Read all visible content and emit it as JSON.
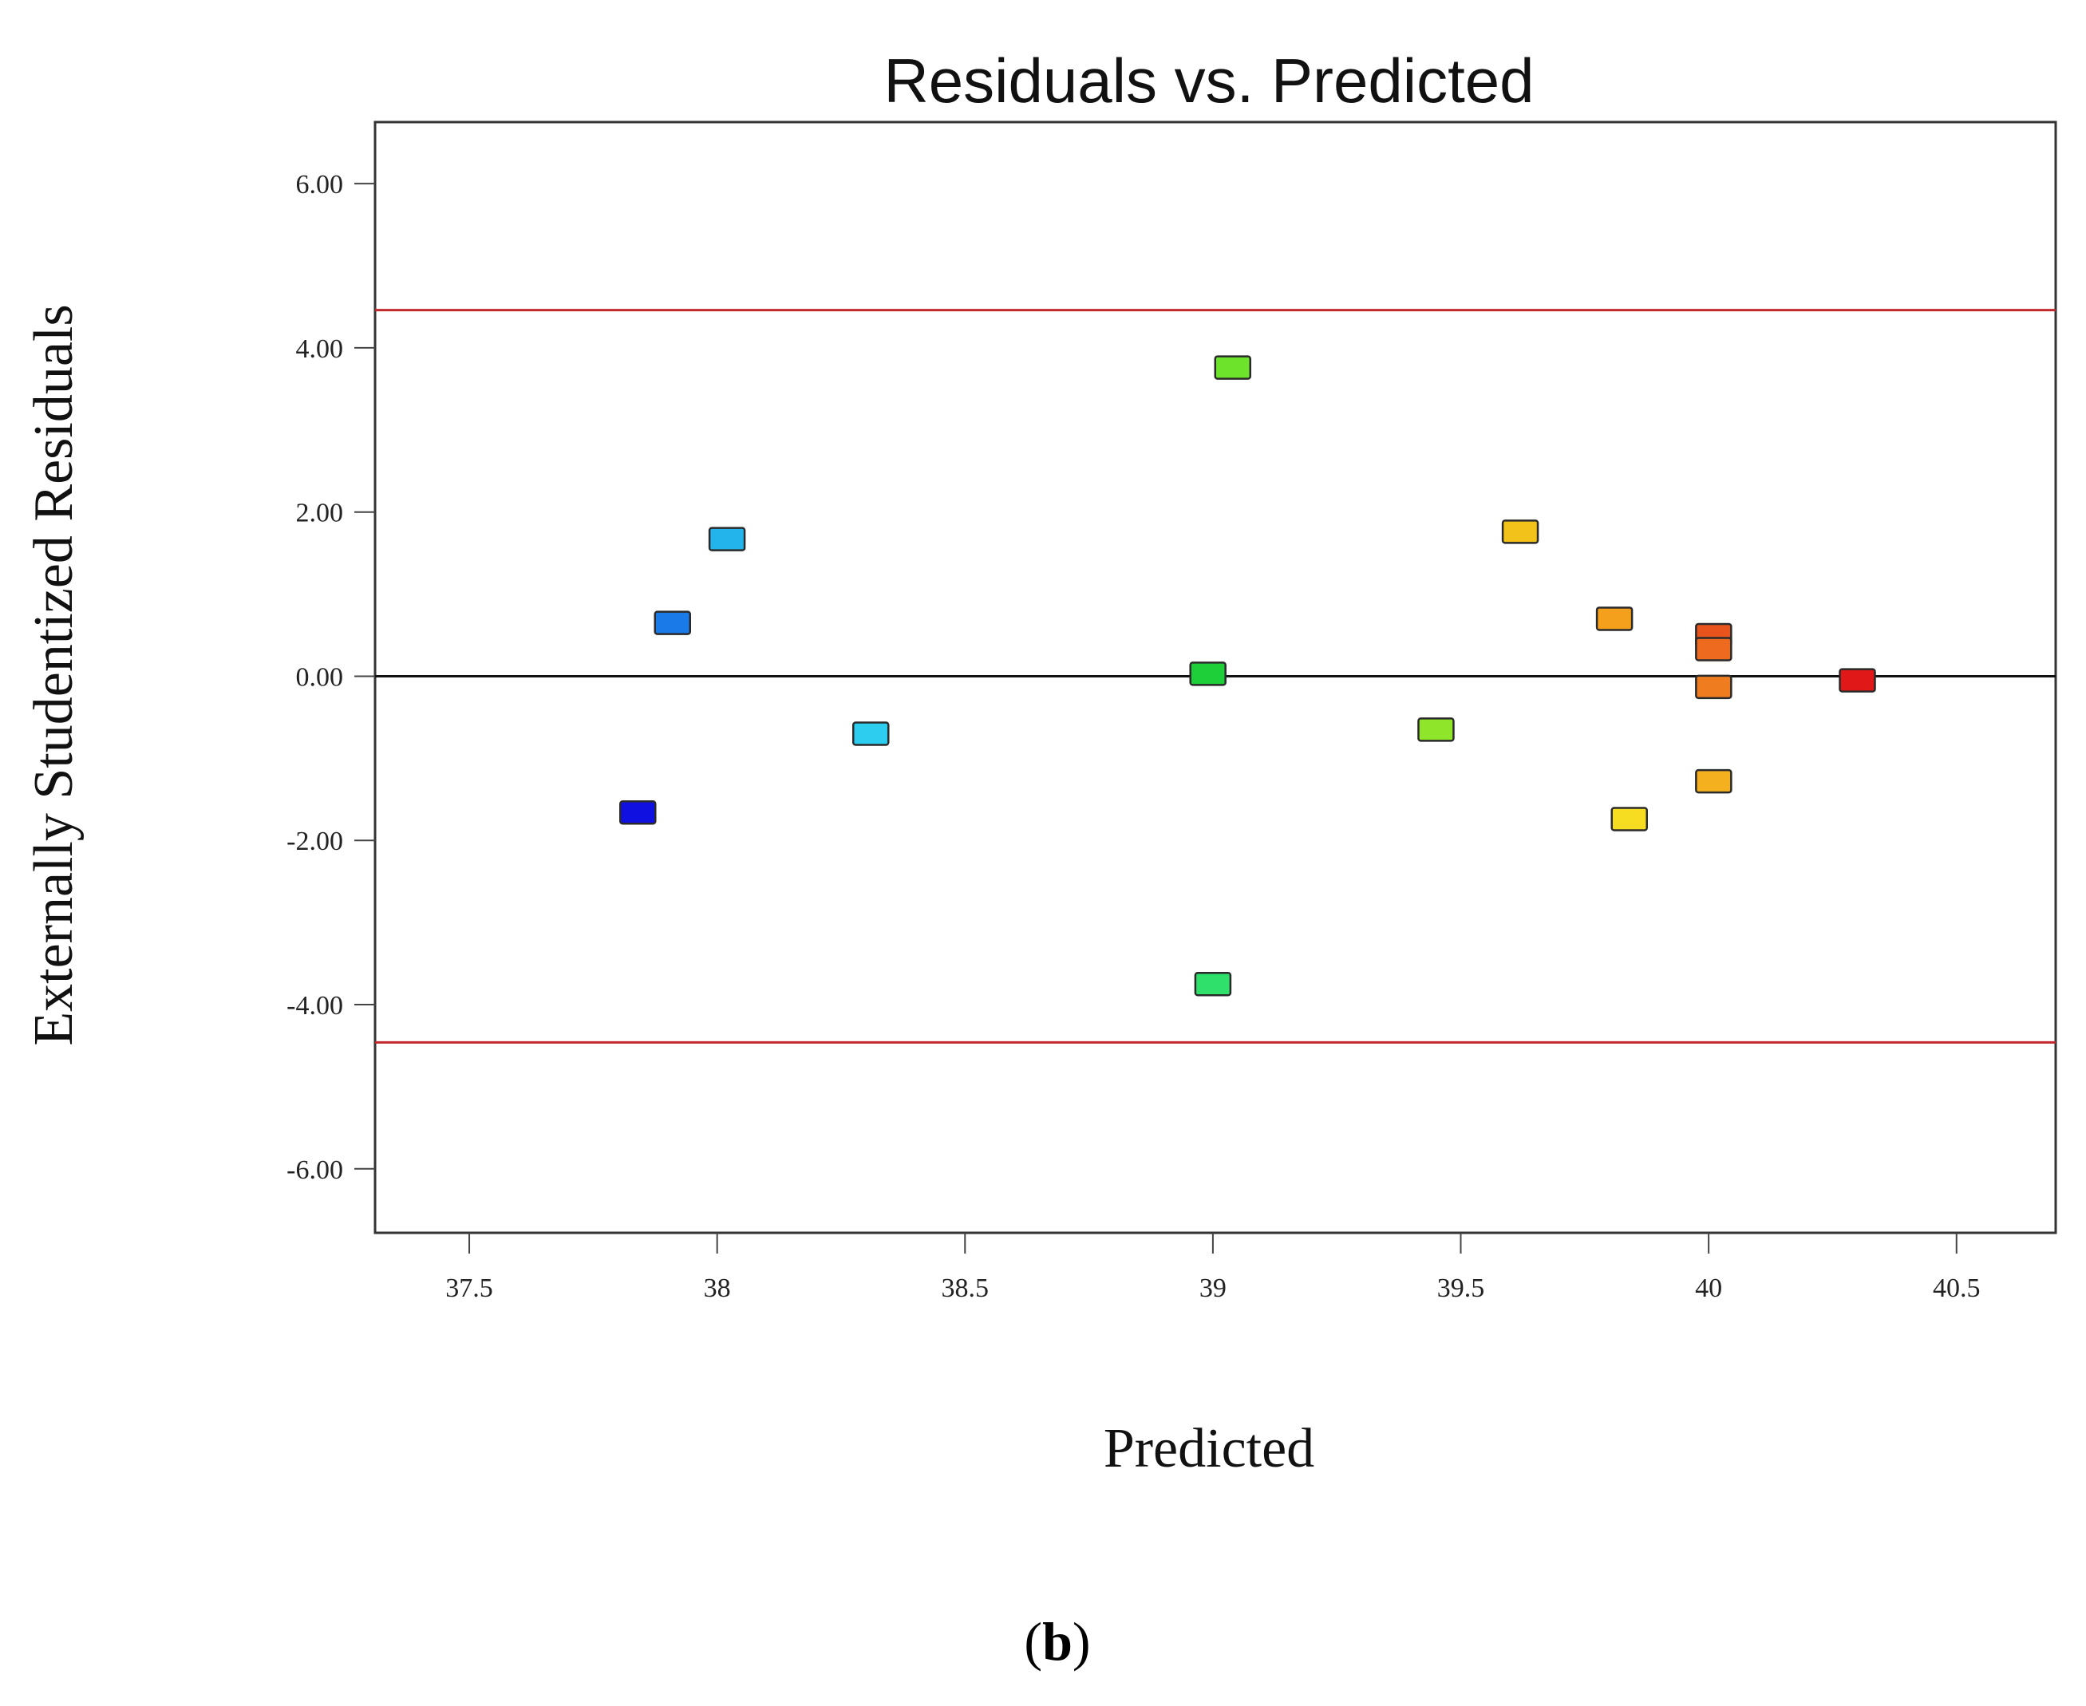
{
  "chart_data": {
    "type": "scatter",
    "title": "Residuals vs. Predicted",
    "xlabel": "Predicted",
    "ylabel": "Externally Studentized Residuals",
    "xlim": [
      37.31,
      40.7
    ],
    "ylim": [
      -6.78,
      6.75
    ],
    "xticks": [
      37.5,
      38,
      38.5,
      39,
      39.5,
      40,
      40.5
    ],
    "xtick_labels": [
      "37.5",
      "38",
      "38.5",
      "39",
      "39.5",
      "40",
      "40.5"
    ],
    "yticks": [
      6,
      4,
      2,
      0,
      -2,
      -4,
      -6
    ],
    "ytick_labels": [
      "6.00",
      "4.00",
      "2.00",
      "0.00",
      "-2.00",
      "-4.00",
      "-6.00"
    ],
    "grid": false,
    "reference_lines": [
      {
        "name": "upper-limit",
        "y": 4.46,
        "color": "#c0282d"
      },
      {
        "name": "zero-line",
        "y": 0,
        "color": "#111111"
      },
      {
        "name": "lower-limit",
        "y": -4.46,
        "color": "#c0282d"
      }
    ],
    "points": [
      {
        "x": 37.84,
        "y": -1.66,
        "color": "#1010e0"
      },
      {
        "x": 37.91,
        "y": 0.65,
        "color": "#1a7ae8"
      },
      {
        "x": 38.02,
        "y": 1.67,
        "color": "#22b4ea"
      },
      {
        "x": 38.31,
        "y": -0.7,
        "color": "#2ccdee"
      },
      {
        "x": 38.99,
        "y": 0.03,
        "color": "#1fcf3a"
      },
      {
        "x": 39.0,
        "y": -3.75,
        "color": "#2fe06a"
      },
      {
        "x": 39.04,
        "y": 3.76,
        "color": "#6ee32b"
      },
      {
        "x": 39.45,
        "y": -0.65,
        "color": "#8fe52a"
      },
      {
        "x": 39.62,
        "y": 1.76,
        "color": "#f2c21a"
      },
      {
        "x": 39.81,
        "y": 0.7,
        "color": "#f5a01c"
      },
      {
        "x": 39.84,
        "y": -1.74,
        "color": "#f7dd22"
      },
      {
        "x": 40.01,
        "y": 0.5,
        "color": "#e8541c"
      },
      {
        "x": 40.01,
        "y": 0.33,
        "color": "#ee6a1e"
      },
      {
        "x": 40.01,
        "y": -0.13,
        "color": "#f07c20"
      },
      {
        "x": 40.01,
        "y": -1.28,
        "color": "#f5b020"
      },
      {
        "x": 40.3,
        "y": -0.05,
        "color": "#e01818"
      }
    ]
  },
  "panel_label": {
    "open": "(",
    "letter": "b",
    "close": ")"
  }
}
